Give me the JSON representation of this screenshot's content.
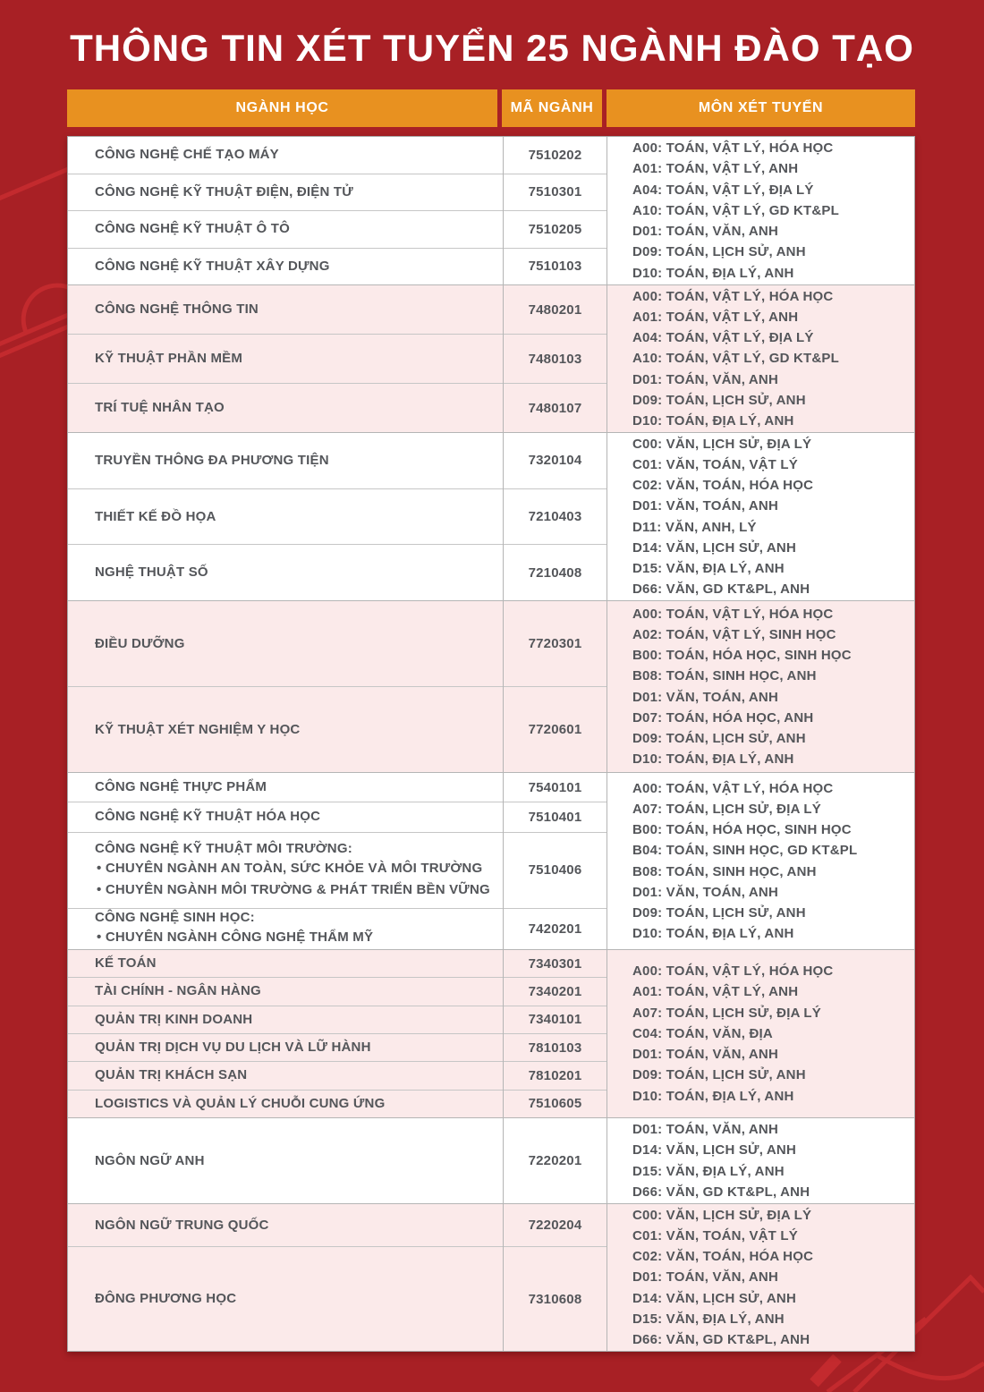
{
  "title": "THÔNG TIN XÉT TUYỂN 25 NGÀNH ĐÀO TẠO",
  "colors": {
    "background": "#A82025",
    "accent_orange": "#E89120",
    "row_pink": "#FBEAEA",
    "row_white": "#FFFFFF",
    "text_gray": "#54565A",
    "header_text": "#FFFFFF",
    "border_gray": "#B5B5B5",
    "decoration_red": "#C32A2E"
  },
  "table": {
    "headers": [
      "NGÀNH HỌC",
      "MÃ NGÀNH",
      "MÔN XÉT TUYỂN"
    ],
    "groups": [
      {
        "tone": "white",
        "majors": [
          {
            "name": "CÔNG NGHỆ CHẾ TẠO MÁY",
            "code": "7510202"
          },
          {
            "name": "CÔNG NGHỆ KỸ THUẬT ĐIỆN, ĐIỆN TỬ",
            "code": "7510301"
          },
          {
            "name": "CÔNG NGHỆ KỸ THUẬT Ô TÔ",
            "code": "7510205"
          },
          {
            "name": "CÔNG NGHỆ KỸ THUẬT XÂY DỰNG",
            "code": "7510103"
          }
        ],
        "subjects": [
          "A00: TOÁN, VẬT LÝ, HÓA HỌC",
          "A01: TOÁN, VẬT LÝ, ANH",
          "A04: TOÁN, VẬT LÝ, ĐỊA LÝ",
          "A10: TOÁN, VẬT LÝ, GD KT&PL",
          "D01: TOÁN, VĂN, ANH",
          "D09: TOÁN, LỊCH SỬ, ANH",
          "D10: TOÁN, ĐỊA LÝ, ANH"
        ]
      },
      {
        "tone": "pink",
        "majors": [
          {
            "name": "CÔNG NGHỆ THÔNG TIN",
            "code": "7480201"
          },
          {
            "name": "KỸ THUẬT PHẦN MỀM",
            "code": "7480103"
          },
          {
            "name": "TRÍ TUỆ NHÂN TẠO",
            "code": "7480107"
          }
        ],
        "subjects": [
          "A00: TOÁN, VẬT LÝ, HÓA HỌC",
          "A01: TOÁN, VẬT LÝ, ANH",
          "A04: TOÁN, VẬT LÝ, ĐỊA LÝ",
          "A10: TOÁN, VẬT LÝ, GD KT&PL",
          "D01: TOÁN, VĂN, ANH",
          "D09: TOÁN, LỊCH SỬ, ANH",
          "D10: TOÁN, ĐỊA LÝ, ANH"
        ]
      },
      {
        "tone": "white",
        "majors": [
          {
            "name": "TRUYỀN THÔNG ĐA PHƯƠNG TIỆN",
            "code": "7320104"
          },
          {
            "name": "THIẾT KẾ ĐỒ HỌA",
            "code": "7210403"
          },
          {
            "name": "NGHỆ THUẬT SỐ",
            "code": "7210408"
          }
        ],
        "subjects": [
          "C00: VĂN, LỊCH SỬ, ĐỊA LÝ",
          "C01: VĂN, TOÁN, VẬT LÝ",
          "C02: VĂN, TOÁN, HÓA HỌC",
          "D01: VĂN, TOÁN, ANH",
          "D11: VĂN, ANH, LÝ",
          "D14: VĂN, LỊCH SỬ, ANH",
          "D15: VĂN, ĐỊA LÝ, ANH",
          "D66: VĂN, GD KT&PL, ANH"
        ]
      },
      {
        "tone": "pink",
        "majors": [
          {
            "name": "ĐIỀU DƯỠNG",
            "code": "7720301"
          },
          {
            "name": "KỸ THUẬT XÉT NGHIỆM Y HỌC",
            "code": "7720601"
          }
        ],
        "subjects": [
          "A00: TOÁN, VẬT LÝ, HÓA HỌC",
          "A02: TOÁN, VẬT LÝ, SINH HỌC",
          "B00: TOÁN, HÓA HỌC, SINH HỌC",
          "B08: TOÁN, SINH HỌC, ANH",
          "D01: VĂN, TOÁN, ANH",
          "D07: TOÁN, HÓA HỌC, ANH",
          "D09: TOÁN, LỊCH SỬ, ANH",
          "D10: TOÁN, ĐỊA LÝ, ANH"
        ]
      },
      {
        "tone": "white",
        "majors": [
          {
            "name": "CÔNG NGHỆ THỰC PHẨM",
            "code": "7540101"
          },
          {
            "name": "CÔNG NGHỆ KỸ THUẬT HÓA HỌC",
            "code": "7510401"
          },
          {
            "name": "CÔNG NGHỆ KỸ THUẬT MÔI TRƯỜNG:",
            "code": "7510406",
            "specializations": [
              "CHUYÊN NGÀNH AN TOÀN, SỨC KHỎE VÀ MÔI TRƯỜNG",
              "CHUYÊN NGÀNH MÔI TRƯỜNG & PHÁT TRIỂN BỀN VỮNG"
            ]
          },
          {
            "name": "CÔNG NGHỆ SINH HỌC:",
            "code": "7420201",
            "specializations": [
              "CHUYÊN NGÀNH CÔNG NGHỆ THẨM MỸ"
            ]
          }
        ],
        "subjects": [
          "A00: TOÁN, VẬT LÝ, HÓA HỌC",
          "A07: TOÁN, LỊCH SỬ, ĐỊA LÝ",
          "B00: TOÁN, HÓA HỌC, SINH HỌC",
          "B04: TOÁN, SINH HỌC, GD KT&PL",
          "B08: TOÁN, SINH HỌC, ANH",
          "D01: VĂN, TOÁN, ANH",
          "D09: TOÁN, LỊCH SỬ, ANH",
          "D10: TOÁN, ĐỊA LÝ, ANH"
        ]
      },
      {
        "tone": "pink",
        "majors": [
          {
            "name": "KẾ TOÁN",
            "code": "7340301"
          },
          {
            "name": "TÀI CHÍNH - NGÂN HÀNG",
            "code": "7340201"
          },
          {
            "name": "QUẢN TRỊ KINH DOANH",
            "code": "7340101"
          },
          {
            "name": "QUẢN TRỊ DỊCH VỤ DU LỊCH VÀ LỮ HÀNH",
            "code": "7810103"
          },
          {
            "name": "QUẢN TRỊ KHÁCH SẠN",
            "code": "7810201"
          },
          {
            "name": "LOGISTICS VÀ QUẢN LÝ CHUỖI CUNG ỨNG",
            "code": "7510605"
          }
        ],
        "subjects": [
          "A00: TOÁN, VẬT LÝ, HÓA HỌC",
          "A01: TOÁN, VẬT LÝ, ANH",
          "A07: TOÁN, LỊCH SỬ, ĐỊA LÝ",
          "C04: TOÁN, VĂN, ĐỊA",
          "D01: TOÁN, VĂN, ANH",
          "D09: TOÁN, LỊCH SỬ, ANH",
          "D10: TOÁN, ĐỊA LÝ, ANH"
        ]
      },
      {
        "tone": "white",
        "majors": [
          {
            "name": "NGÔN NGỮ ANH",
            "code": "7220201"
          }
        ],
        "subjects": [
          "D01: TOÁN, VĂN, ANH",
          "D14: VĂN, LỊCH SỬ, ANH",
          "D15: VĂN, ĐỊA LÝ, ANH",
          "D66: VĂN, GD KT&PL, ANH"
        ]
      },
      {
        "tone": "pink",
        "majors": [
          {
            "name": "NGÔN NGỮ TRUNG QUỐC",
            "code": "7220204"
          },
          {
            "name": "ĐÔNG PHƯƠNG HỌC",
            "code": "7310608"
          }
        ],
        "subjects": [
          "C00: VĂN, LỊCH SỬ, ĐỊA LÝ",
          "C01: VĂN, TOÁN, VẬT LÝ",
          "C02: VĂN, TOÁN, HÓA HỌC",
          "D01: TOÁN, VĂN, ANH",
          "D14: VĂN, LỊCH SỬ, ANH",
          "D15: VĂN, ĐỊA LÝ, ANH",
          "D66: VĂN, GD KT&PL, ANH"
        ]
      }
    ]
  }
}
